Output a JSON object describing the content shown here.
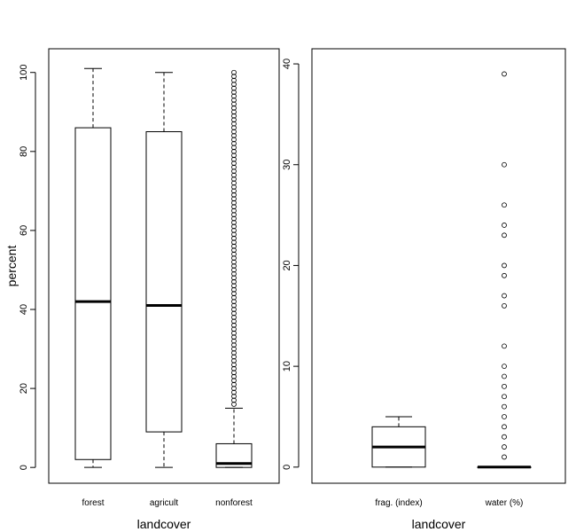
{
  "chart_data": [
    {
      "type": "box",
      "title": "",
      "xlabel": "landcover",
      "ylabel": "percent",
      "ylim": [
        -4,
        106
      ],
      "yticks": [
        0,
        20,
        40,
        60,
        80,
        100
      ],
      "ytick_labels": [
        "0",
        "20",
        "40",
        "60",
        "80",
        "100"
      ],
      "grid": false,
      "legend": "none",
      "categories": [
        "forest",
        "agricult",
        "nonforest"
      ],
      "boxes": [
        {
          "name": "forest",
          "whisker_low": 0,
          "q1": 2,
          "median": 42,
          "q3": 86,
          "whisker_high": 101,
          "outliers": []
        },
        {
          "name": "agricult",
          "whisker_low": 0,
          "q1": 9,
          "median": 41,
          "q3": 85,
          "whisker_high": 100,
          "outliers": []
        },
        {
          "name": "nonforest",
          "whisker_low": 0,
          "q1": 0,
          "median": 1,
          "q3": 6,
          "whisker_high": 15,
          "outliers_range": [
            16,
            100
          ],
          "outliers_step": 1
        }
      ]
    },
    {
      "type": "box",
      "title": "",
      "xlabel": "landcover",
      "ylabel": "",
      "ylim": [
        -1.6,
        41.5
      ],
      "yticks": [
        0,
        10,
        20,
        30,
        40
      ],
      "ytick_labels": [
        "0",
        "10",
        "20",
        "30",
        "40"
      ],
      "grid": false,
      "legend": "none",
      "categories": [
        "frag. (index)",
        "water (%)"
      ],
      "boxes": [
        {
          "name": "frag. (index)",
          "whisker_low": 0,
          "q1": 0,
          "median": 2,
          "q3": 4,
          "whisker_high": 5,
          "outliers": []
        },
        {
          "name": "water (%)",
          "whisker_low": 0,
          "q1": 0,
          "median": 0,
          "q3": 0,
          "whisker_high": 0,
          "outliers": [
            1,
            2,
            3,
            4,
            5,
            6,
            7,
            8,
            9,
            10,
            12,
            16,
            17,
            19,
            20,
            23,
            24,
            26,
            30,
            39
          ]
        }
      ]
    }
  ]
}
